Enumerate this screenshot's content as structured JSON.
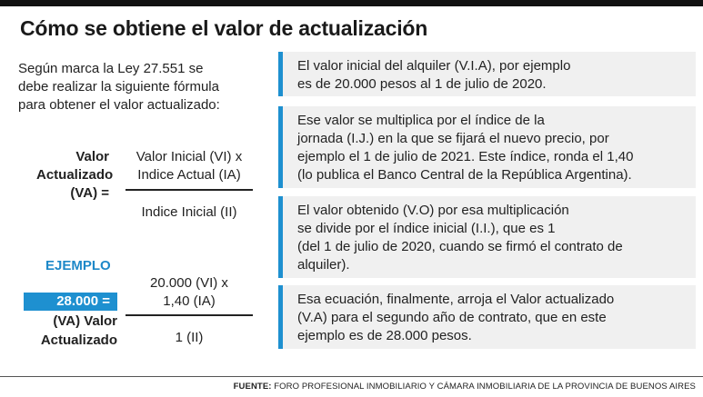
{
  "title": "Cómo se obtiene el valor de actualización",
  "intro": "Según marca la Ley 27.551 se\ndebe realizar la siguiente fórmula\npara obtener el valor actualizado:",
  "formula": {
    "lhs": "Valor\nActualizado\n(VA) =",
    "numerator": "Valor Inicial (VI) x\nIndice Actual (IA)",
    "denominator": "Indice Inicial (II)"
  },
  "example": {
    "label": "EJEMPLO",
    "result": "28.000 =",
    "lhs_rest": "(VA) Valor\nActualizado",
    "numerator": "20.000 (VI) x\n1,40 (IA)",
    "denominator": "1 (II)"
  },
  "steps": [
    "El valor inicial del alquiler (V.I.A), por ejemplo\nes de 20.000 pesos al 1 de julio de 2020.",
    "Ese valor se multiplica por el índice de la\njornada (I.J.) en la que se fijará el nuevo precio, por\nejemplo el  1 de julio de 2021. Este índice, ronda el 1,40\n(lo publica el Banco Central de la República Argentina).",
    "El valor obtenido (V.O) por esa multiplicación\nse divide por el índice inicial (I.I.), que es 1\n(del 1 de julio de 2020, cuando se firmó el contrato de\nalquiler).",
    "Esa ecuación, finalmente, arroja el Valor actualizado\n(V.A) para el segundo año de contrato, que en este\nejemplo es de 28.000 pesos."
  ],
  "source": {
    "label": "FUENTE:",
    "text": " FORO PROFESIONAL INMOBILIARIO Y CÁMARA INMOBILIARIA DE LA PROVINCIA DE BUENOS AIRES"
  },
  "colors": {
    "accent": "#1e90d0",
    "panel": "#f0f0f0",
    "text": "#222222"
  }
}
